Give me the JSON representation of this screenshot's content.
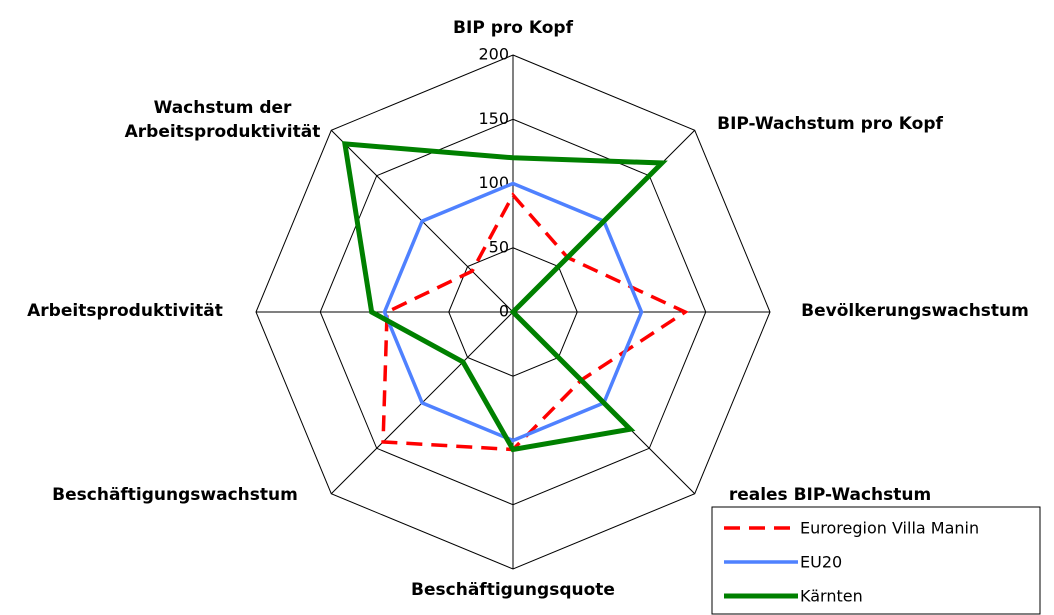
{
  "chart_data": {
    "type": "radar",
    "categories": [
      "BIP pro Kopf",
      "BIP-Wachstum pro Kopf",
      "Bevölkerungswachstum",
      "reales BIP-Wachstum",
      "Beschäftigungsquote",
      "Beschäftigungswachstum",
      "Arbeitsproduktivität",
      "Wachstum der Arbeitsproduktivität"
    ],
    "series": [
      {
        "name": "Euroregion Villa Manin",
        "color": "#ff0000",
        "dashed": true,
        "values": [
          91,
          60,
          134,
          75,
          107,
          143,
          98,
          45
        ]
      },
      {
        "name": "EU20",
        "color": "#4f81ff",
        "dashed": false,
        "values": [
          100,
          100,
          100,
          100,
          100,
          100,
          100,
          100
        ]
      },
      {
        "name": "Kärnten",
        "color": "#008000",
        "dashed": false,
        "values": [
          120,
          164,
          0,
          129,
          107,
          55,
          110,
          185
        ]
      }
    ],
    "ylim": [
      0,
      200
    ],
    "yticks": [
      0,
      50,
      100,
      150,
      200
    ],
    "legend": "bottom-right"
  }
}
